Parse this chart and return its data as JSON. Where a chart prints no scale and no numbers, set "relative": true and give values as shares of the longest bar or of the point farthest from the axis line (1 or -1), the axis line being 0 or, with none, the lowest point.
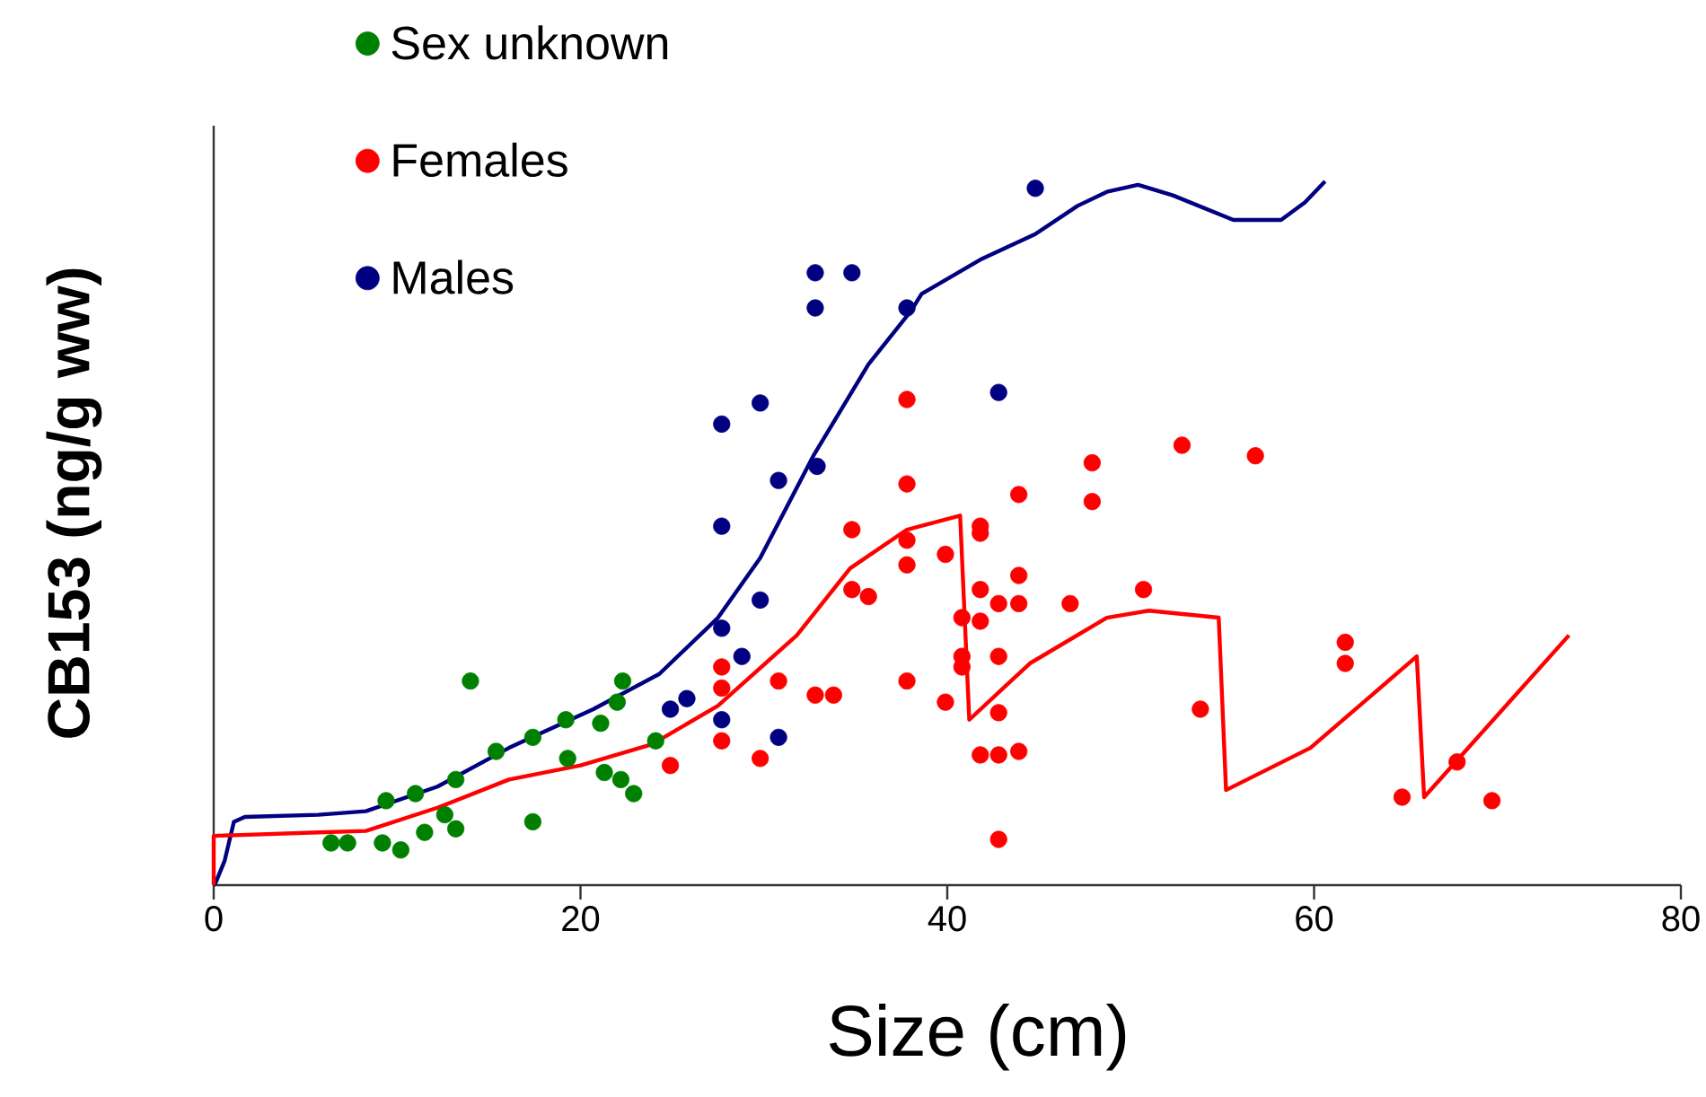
{
  "chart_data": {
    "type": "scatter",
    "xlabel": "Size (cm)",
    "ylabel": "CB153 (ng/g ww)",
    "relative": true,
    "xlim": [
      0,
      80
    ],
    "xticks": [
      0,
      20,
      40,
      60,
      80
    ],
    "marker": "circle",
    "legend": "top left",
    "grid": false,
    "series": [
      {
        "name": "Sex unknown",
        "color": "#008000",
        "x": [
          6.4,
          7.3,
          9.2,
          10.2,
          11.5,
          12.6,
          13.2,
          9.4,
          11.0,
          13.2,
          14.0,
          15.4,
          17.4,
          17.4,
          19.2,
          19.3,
          21.1,
          21.3,
          22.2,
          22.9,
          22.0,
          22.3,
          24.1
        ],
        "values": [
          0.06,
          0.06,
          0.06,
          0.05,
          0.075,
          0.1,
          0.08,
          0.12,
          0.13,
          0.15,
          0.29,
          0.19,
          0.21,
          0.09,
          0.235,
          0.18,
          0.23,
          0.16,
          0.15,
          0.13,
          0.26,
          0.29,
          0.205
        ]
      },
      {
        "name": "Females",
        "color": "#ff0000",
        "x": [
          24.9,
          27.7,
          27.7,
          27.7,
          29.8,
          30.8,
          32.8,
          33.8,
          34.8,
          34.8,
          35.7,
          37.8,
          37.8,
          37.8,
          37.8,
          37.8,
          39.9,
          39.9,
          40.8,
          40.8,
          40.8,
          41.8,
          41.8,
          41.8,
          41.8,
          42.8,
          42.8,
          42.8,
          41.8,
          42.8,
          43.9,
          42.8,
          43.9,
          43.9,
          43.9,
          46.7,
          47.9,
          47.9,
          50.7,
          52.8,
          56.8,
          53.8,
          61.7,
          61.7,
          64.8,
          67.8,
          69.7
        ],
        "values": [
          0.17,
          0.31,
          0.28,
          0.205,
          0.18,
          0.29,
          0.27,
          0.27,
          0.505,
          0.42,
          0.41,
          0.69,
          0.57,
          0.49,
          0.455,
          0.29,
          0.47,
          0.26,
          0.38,
          0.325,
          0.31,
          0.51,
          0.5,
          0.42,
          0.375,
          0.4,
          0.325,
          0.245,
          0.185,
          0.185,
          0.19,
          0.065,
          0.555,
          0.44,
          0.4,
          0.4,
          0.6,
          0.545,
          0.42,
          0.625,
          0.61,
          0.25,
          0.345,
          0.315,
          0.125,
          0.175,
          0.12
        ]
      },
      {
        "name": "Males",
        "color": "#000080",
        "x": [
          24.9,
          25.8,
          27.7,
          27.7,
          28.8,
          29.8,
          30.8,
          27.7,
          27.7,
          29.8,
          30.8,
          32.9,
          32.8,
          34.8,
          32.8,
          37.8,
          44.8,
          42.8
        ],
        "values": [
          0.25,
          0.265,
          0.235,
          0.365,
          0.325,
          0.405,
          0.21,
          0.51,
          0.655,
          0.685,
          0.575,
          0.595,
          0.87,
          0.87,
          0.82,
          0.82,
          0.99,
          0.7
        ]
      },
      {
        "type": "line",
        "marker": "none",
        "color": "#000080",
        "x": [
          0,
          0.1,
          0.6,
          1.1,
          1.7,
          5.7,
          8.3,
          12.2,
          16.1,
          20.7,
          24.3,
          27.5,
          29.8,
          32.7,
          35.7,
          38.0,
          38.6,
          41.9,
          44.8,
          47.1,
          48.7,
          50.4,
          52.3,
          55.6,
          58.2,
          59.5,
          60.6
        ],
        "values": [
          0,
          0.003,
          0.035,
          0.09,
          0.097,
          0.1,
          0.105,
          0.14,
          0.195,
          0.25,
          0.3,
          0.38,
          0.465,
          0.61,
          0.74,
          0.815,
          0.84,
          0.89,
          0.925,
          0.965,
          0.985,
          0.995,
          0.98,
          0.945,
          0.945,
          0.97,
          1.0
        ]
      },
      {
        "type": "line",
        "marker": "none",
        "color": "#ff0000",
        "x": [
          0,
          0,
          5.7,
          8.3,
          12.2,
          16.1,
          20.0,
          23.9,
          27.5,
          31.8,
          34.7,
          37.8,
          40.7,
          41.2,
          44.5,
          48.7,
          51.0,
          54.8,
          55.2,
          59.8,
          65.6,
          66.0,
          73.9
        ],
        "values": [
          0,
          0.07,
          0.075,
          0.077,
          0.11,
          0.15,
          0.17,
          0.2,
          0.255,
          0.355,
          0.45,
          0.505,
          0.525,
          0.235,
          0.315,
          0.38,
          0.39,
          0.38,
          0.135,
          0.195,
          0.325,
          0.125,
          0.355
        ]
      }
    ]
  }
}
